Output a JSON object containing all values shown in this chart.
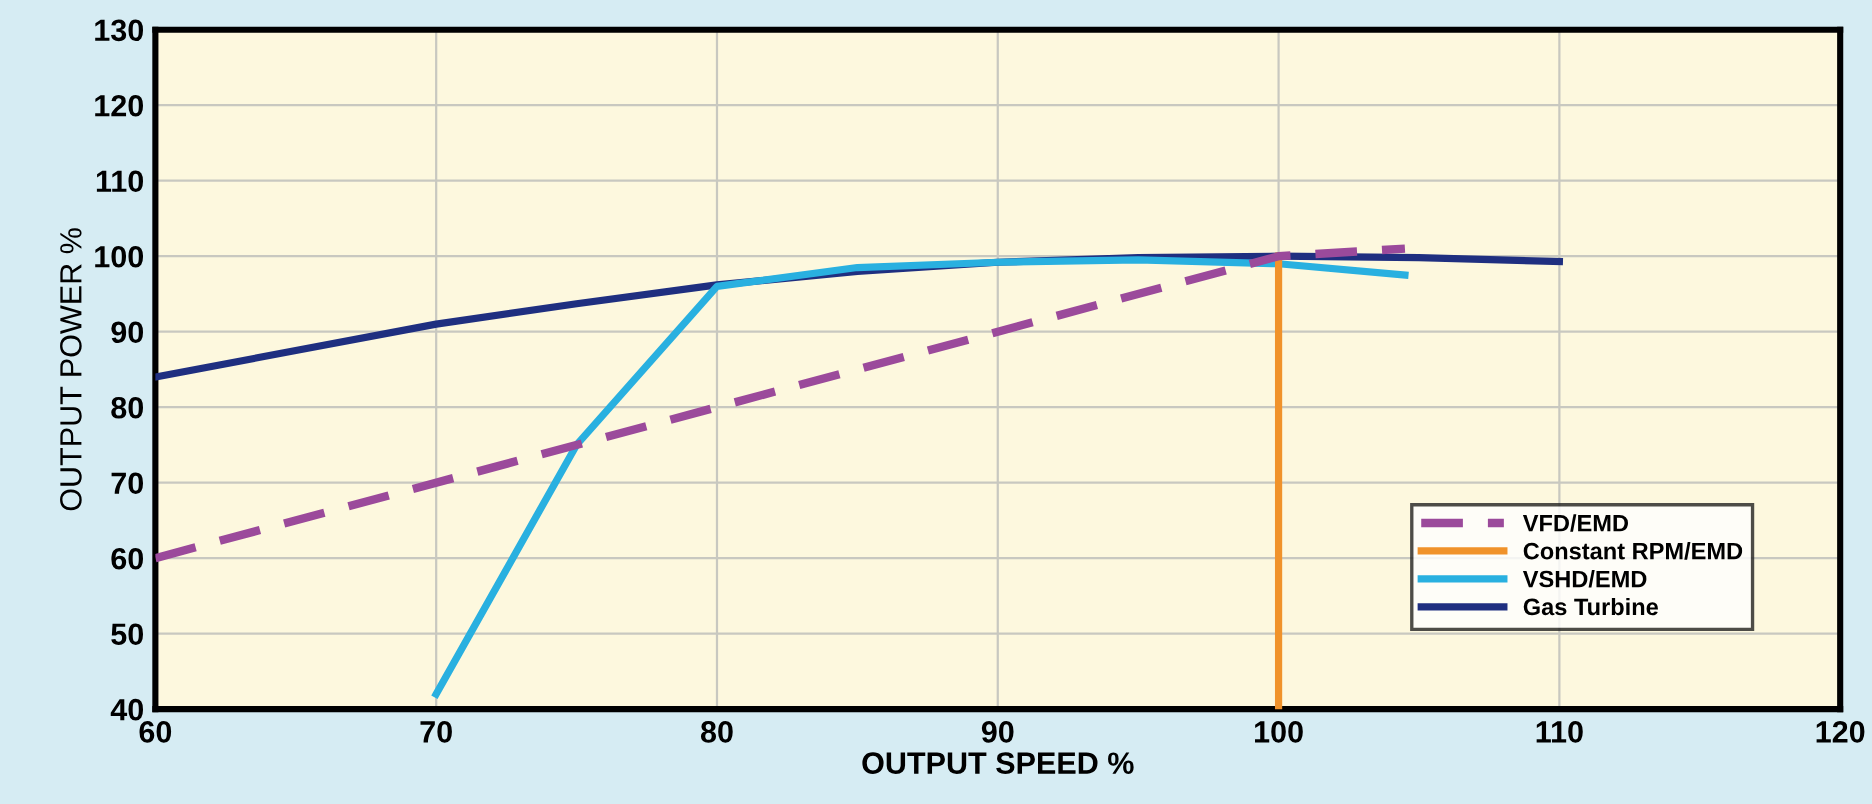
{
  "chart_data": {
    "type": "line",
    "xlabel": "OUTPUT SPEED %",
    "ylabel": "OUTPUT POWER %",
    "xlim": [
      60,
      120
    ],
    "xticks": [
      60,
      70,
      80,
      90,
      100,
      110,
      120
    ],
    "ylim": [
      40,
      130
    ],
    "yticks": [
      40,
      50,
      60,
      70,
      80,
      90,
      100,
      110,
      120,
      130
    ],
    "grid": true,
    "legend": "bottom right",
    "series": [
      {
        "name": "VFD/EMD",
        "color": "#9b4a9b",
        "line_style": "dashed",
        "x": [
          60,
          100,
          104.5
        ],
        "values": [
          60,
          100,
          101
        ]
      },
      {
        "name": "Constant RPM/EMD",
        "color": "#f0922a",
        "line_style": "solid",
        "x": [
          100,
          100
        ],
        "values": [
          40,
          100
        ]
      },
      {
        "name": "VSHD/EMD",
        "color": "#29b0e0",
        "line_style": "solid",
        "x": [
          70,
          75,
          80,
          85,
          90,
          95,
          100,
          104.5
        ],
        "values": [
          42,
          75,
          96,
          98.5,
          99.2,
          99.5,
          99,
          97.5
        ]
      },
      {
        "name": "Gas Turbine",
        "color": "#1f2f80",
        "line_style": "solid",
        "x": [
          60,
          65,
          70,
          75,
          80,
          85,
          90,
          95,
          100,
          105,
          110
        ],
        "values": [
          84,
          87.5,
          91,
          93.7,
          96.2,
          98,
          99.2,
          99.8,
          100,
          99.8,
          99.3
        ]
      }
    ]
  }
}
